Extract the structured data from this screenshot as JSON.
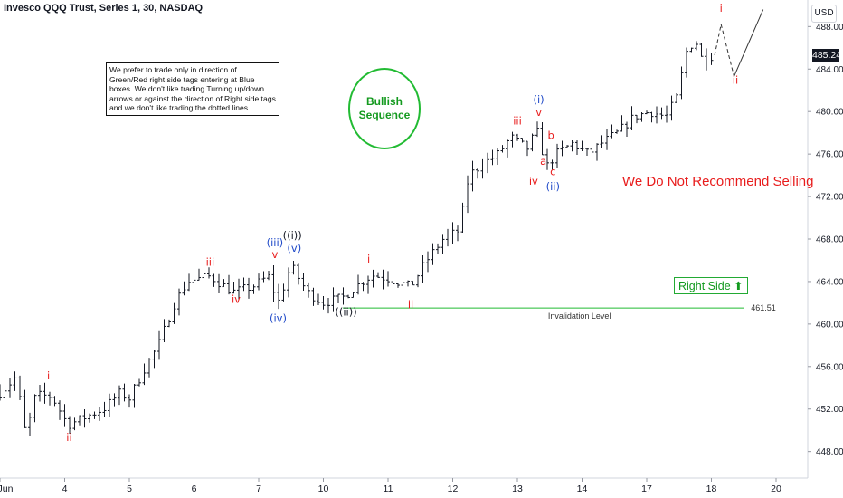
{
  "header": {
    "title": "Invesco QQQ Trust, Series 1, 30, NASDAQ"
  },
  "axis": {
    "currency_label": "USD",
    "current_price_label": "485.24"
  },
  "note_box": {
    "text": "We prefer to trade only in direction of Green/Red right side tags entering at Blue boxes. We don't like trading Turning up/down arrows or against the direction of Right side tags and we don't like trading the dotted lines."
  },
  "badge": {
    "line1": "Bullish",
    "line2": "Sequence"
  },
  "warning": {
    "text": "We Do Not Recommend Selling"
  },
  "right_side": {
    "label": "Right Side",
    "arrow": "⬆"
  },
  "colors": {
    "red": "#e81c1c",
    "blue": "#1f49c8",
    "black": "#131722",
    "green": "#22bb33",
    "bar": "#131722"
  },
  "chart_data": {
    "type": "ohlc",
    "title": "Invesco QQQ Trust, Series 1, 30, NASDAQ",
    "ylim": [
      445.5,
      490.5
    ],
    "y_ticks": [
      448.0,
      452.0,
      456.0,
      460.0,
      464.0,
      468.0,
      472.0,
      476.0,
      480.0,
      484.0,
      488.0
    ],
    "x_ticks": [
      {
        "label": "Jun",
        "day": 3.0
      },
      {
        "label": "4",
        "day": 4.0
      },
      {
        "label": "5",
        "day": 5.0
      },
      {
        "label": "6",
        "day": 6.0
      },
      {
        "label": "7",
        "day": 7.0
      },
      {
        "label": "10",
        "day": 8.0
      },
      {
        "label": "11",
        "day": 9.0
      },
      {
        "label": "12",
        "day": 10.0
      },
      {
        "label": "13",
        "day": 11.0
      },
      {
        "label": "14",
        "day": 12.0
      },
      {
        "label": "17",
        "day": 13.0
      },
      {
        "label": "18",
        "day": 14.0
      },
      {
        "label": "20",
        "day": 15.0
      }
    ],
    "path": [
      [
        3.0,
        453.5
      ],
      [
        3.25,
        455.0
      ],
      [
        3.4,
        449.5
      ],
      [
        3.55,
        453.3
      ],
      [
        3.8,
        453.2
      ],
      [
        4.05,
        450.5
      ],
      [
        4.3,
        451.2
      ],
      [
        4.6,
        452.0
      ],
      [
        4.85,
        453.5
      ],
      [
        5.0,
        453.0
      ],
      [
        5.25,
        456.0
      ],
      [
        5.45,
        458.0
      ],
      [
        5.7,
        462.0
      ],
      [
        5.9,
        464.0
      ],
      [
        6.25,
        464.5
      ],
      [
        6.6,
        463.0
      ],
      [
        6.9,
        463.5
      ],
      [
        7.15,
        464.5
      ],
      [
        7.3,
        462.0
      ],
      [
        7.5,
        465.5
      ],
      [
        7.75,
        463.0
      ],
      [
        8.0,
        462.0
      ],
      [
        8.3,
        462.5
      ],
      [
        8.6,
        464.0
      ],
      [
        8.75,
        464.6
      ],
      [
        9.0,
        464.3
      ],
      [
        9.35,
        463.5
      ],
      [
        9.6,
        466.0
      ],
      [
        9.85,
        468.0
      ],
      [
        10.1,
        468.8
      ],
      [
        10.25,
        474.0
      ],
      [
        10.45,
        475.0
      ],
      [
        10.7,
        476.0
      ],
      [
        10.9,
        477.6
      ],
      [
        11.15,
        476.5
      ],
      [
        11.3,
        478.2
      ],
      [
        11.45,
        474.8
      ],
      [
        11.6,
        476.0
      ],
      [
        11.85,
        477.0
      ],
      [
        12.1,
        476.0
      ],
      [
        12.3,
        477.0
      ],
      [
        12.55,
        478.0
      ],
      [
        12.8,
        479.5
      ],
      [
        13.05,
        480.0
      ],
      [
        13.3,
        479.5
      ],
      [
        13.48,
        481.5
      ],
      [
        13.6,
        485.5
      ],
      [
        13.75,
        486.8
      ],
      [
        13.85,
        485.0
      ],
      [
        14.05,
        485.3
      ]
    ],
    "bars_per_day": 13,
    "projection": [
      [
        14.05,
        485.3
      ],
      [
        14.15,
        488.2
      ],
      [
        14.35,
        483.3
      ],
      [
        14.8,
        489.6
      ]
    ],
    "invalidation": {
      "label": "Invalidation Level",
      "value": 461.51,
      "value_label": "461.51",
      "from_day": 8.3,
      "to_day": 14.5
    },
    "current_price": 485.24,
    "wave_labels": [
      {
        "text": "i",
        "day": 3.75,
        "price": 454.8,
        "color": "red"
      },
      {
        "text": "ii",
        "day": 4.07,
        "price": 449.0,
        "color": "red"
      },
      {
        "text": "iii",
        "day": 6.25,
        "price": 465.5,
        "color": "red"
      },
      {
        "text": "iv",
        "day": 6.65,
        "price": 462.0,
        "color": "red"
      },
      {
        "text": "(iii)",
        "day": 7.25,
        "price": 467.3,
        "color": "blue"
      },
      {
        "text": "v",
        "day": 7.25,
        "price": 466.2,
        "color": "red"
      },
      {
        "text": "((i))",
        "day": 7.52,
        "price": 468.0,
        "color": "black"
      },
      {
        "text": "(v)",
        "day": 7.55,
        "price": 466.8,
        "color": "blue"
      },
      {
        "text": "(iv)",
        "day": 7.3,
        "price": 460.2,
        "color": "blue"
      },
      {
        "text": "((ii))",
        "day": 8.35,
        "price": 460.8,
        "color": "black"
      },
      {
        "text": "i",
        "day": 8.7,
        "price": 465.8,
        "color": "red"
      },
      {
        "text": "ii",
        "day": 9.35,
        "price": 461.5,
        "color": "red"
      },
      {
        "text": "iii",
        "day": 11.0,
        "price": 478.8,
        "color": "red"
      },
      {
        "text": "(i)",
        "day": 11.33,
        "price": 480.8,
        "color": "blue"
      },
      {
        "text": "v",
        "day": 11.33,
        "price": 479.6,
        "color": "red"
      },
      {
        "text": "b",
        "day": 11.52,
        "price": 477.4,
        "color": "red"
      },
      {
        "text": "a",
        "day": 11.4,
        "price": 475.0,
        "color": "red"
      },
      {
        "text": "c",
        "day": 11.55,
        "price": 474.0,
        "color": "red"
      },
      {
        "text": "iv",
        "day": 11.25,
        "price": 473.1,
        "color": "red"
      },
      {
        "text": "(ii)",
        "day": 11.55,
        "price": 472.6,
        "color": "blue"
      },
      {
        "text": "i",
        "day": 14.15,
        "price": 489.4,
        "color": "red"
      },
      {
        "text": "ii",
        "day": 14.37,
        "price": 482.6,
        "color": "red"
      }
    ]
  }
}
